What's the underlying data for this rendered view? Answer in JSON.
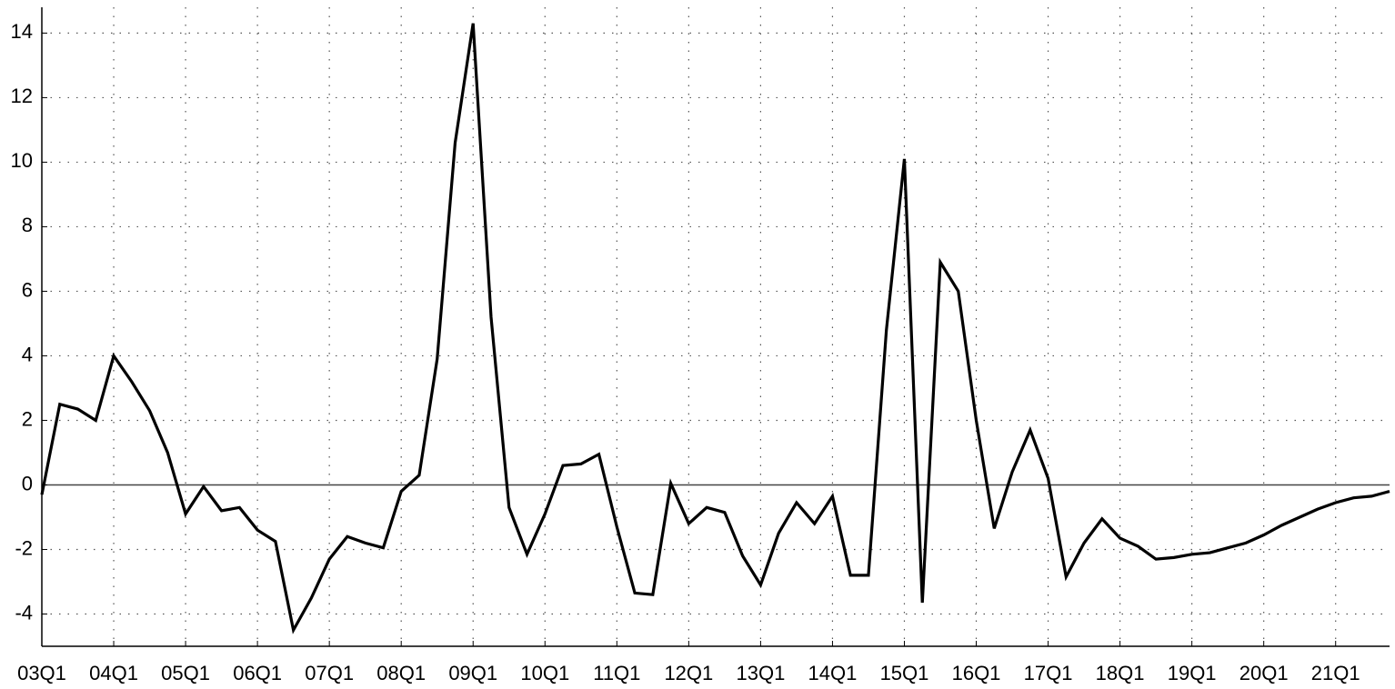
{
  "chart_data": {
    "type": "line",
    "categories": [
      "03Q1",
      null,
      null,
      null,
      "04Q1",
      null,
      null,
      null,
      "05Q1",
      null,
      null,
      null,
      "06Q1",
      null,
      null,
      null,
      "07Q1",
      null,
      null,
      null,
      "08Q1",
      null,
      null,
      null,
      "09Q1",
      null,
      null,
      null,
      "10Q1",
      null,
      null,
      null,
      "11Q1",
      null,
      null,
      null,
      "12Q1",
      null,
      null,
      null,
      "13Q1",
      null,
      null,
      null,
      "14Q1",
      null,
      null,
      null,
      "15Q1",
      null,
      null,
      null,
      "16Q1",
      null,
      null,
      null,
      "17Q1",
      null,
      null,
      null,
      "18Q1",
      null,
      null,
      null,
      "19Q1",
      null,
      null,
      null,
      "20Q1",
      null,
      null,
      null,
      "21Q1",
      null,
      null,
      null
    ],
    "series": [
      {
        "color": "#000000",
        "values": [
          -0.3,
          2.5,
          2.35,
          2.0,
          4.0,
          3.2,
          2.3,
          1.0,
          -0.9,
          -0.05,
          -0.8,
          -0.7,
          -1.4,
          -1.75,
          -4.5,
          -3.5,
          -2.3,
          -1.6,
          -1.8,
          -1.95,
          -0.2,
          0.3,
          3.9,
          10.6,
          14.3,
          5.2,
          -0.7,
          -2.15,
          -0.9,
          0.6,
          0.65,
          0.95,
          -1.3,
          -3.35,
          -3.4,
          0.05,
          -1.2,
          -0.7,
          -0.85,
          -2.2,
          -3.1,
          -1.5,
          -0.55,
          -1.2,
          -0.35,
          -2.8,
          -2.8,
          4.8,
          10.1,
          -3.65,
          6.9,
          6.0,
          2.0,
          -1.35,
          0.4,
          1.7,
          0.2,
          -2.85,
          -1.8,
          -1.05,
          -1.65,
          -1.9,
          -2.3,
          -2.25,
          -2.15,
          -2.1,
          -1.95,
          -1.8,
          -1.55,
          -1.25,
          -1.0,
          -0.75,
          -0.55,
          -0.4,
          -0.35,
          -0.2
        ]
      }
    ],
    "ylim": [
      -5,
      14.8
    ],
    "yticks": [
      -4,
      -2,
      0,
      2,
      4,
      6,
      8,
      10,
      12,
      14
    ],
    "grid": true,
    "shaded_from": "17Q4",
    "shade_color": "#c8c8c8"
  }
}
